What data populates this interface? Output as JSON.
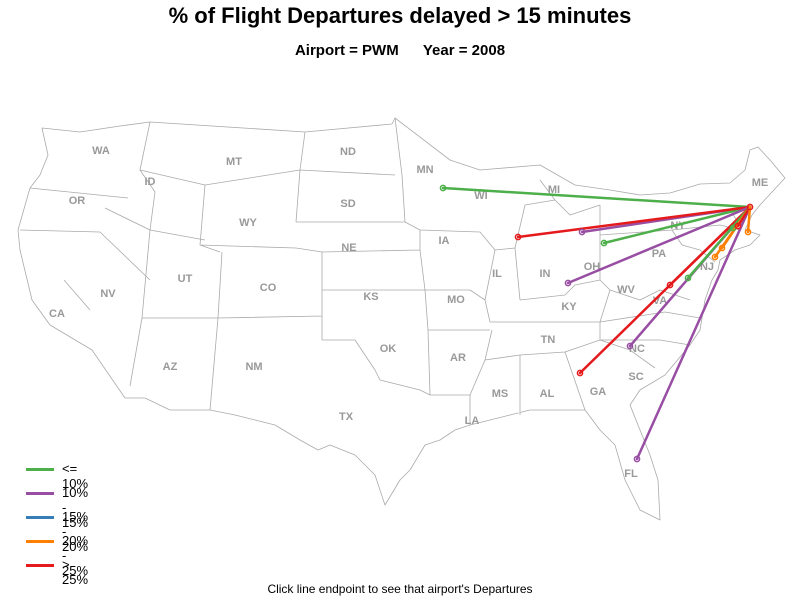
{
  "title": "% of Flight Departures delayed > 15 minutes",
  "subtitle": {
    "airport": "Airport = PWM",
    "year": "Year = 2008"
  },
  "footer": "Click line endpoint to see that airport's Departures",
  "legend": [
    {
      "label": "<= 10%",
      "color": "#4daf4a"
    },
    {
      "label": "10% - 15%",
      "color": "#984ea3"
    },
    {
      "label": "15% - 20%",
      "color": "#377eb8"
    },
    {
      "label": "20% - 25%",
      "color": "#ff7f00"
    },
    {
      "label": "> 25%",
      "color": "#e41a1c"
    }
  ],
  "state_labels": [
    "WA",
    "OR",
    "CA",
    "ID",
    "NV",
    "MT",
    "WY",
    "UT",
    "AZ",
    "CO",
    "NM",
    "ND",
    "SD",
    "NE",
    "KS",
    "OK",
    "TX",
    "MN",
    "IA",
    "MO",
    "AR",
    "LA",
    "WI",
    "IL",
    "MS",
    "MI",
    "IN",
    "KY",
    "TN",
    "AL",
    "OH",
    "GA",
    "FL",
    "PA",
    "WV",
    "VA",
    "NC",
    "SC",
    "NY",
    "ME",
    "NJ"
  ],
  "origin_airport": "PWM",
  "routes": [
    {
      "destination_state": "MN",
      "category": "<= 10%"
    },
    {
      "destination_state": "MI",
      "category": "10% - 15%"
    },
    {
      "destination_state": "OH",
      "category": "<= 10%"
    },
    {
      "destination_state": "IL",
      "category": "> 25%"
    },
    {
      "destination_state": "KY",
      "category": "10% - 15%"
    },
    {
      "destination_state": "NC",
      "category": "10% - 15%"
    },
    {
      "destination_state": "GA",
      "category": "> 25%"
    },
    {
      "destination_state": "FL",
      "category": "10% - 15%"
    },
    {
      "destination_state": "VA",
      "category": "> 25%"
    },
    {
      "destination_state": "VA",
      "category": "<= 10%"
    },
    {
      "destination_state": "NY",
      "category": "<= 10%"
    },
    {
      "destination_state": "NJ",
      "category": "20% - 25%"
    },
    {
      "destination_state": "PA",
      "category": "20% - 25%"
    },
    {
      "destination_state": "NY",
      "category": "> 25%"
    },
    {
      "destination_state": "MA",
      "category": "20% - 25%"
    }
  ]
}
